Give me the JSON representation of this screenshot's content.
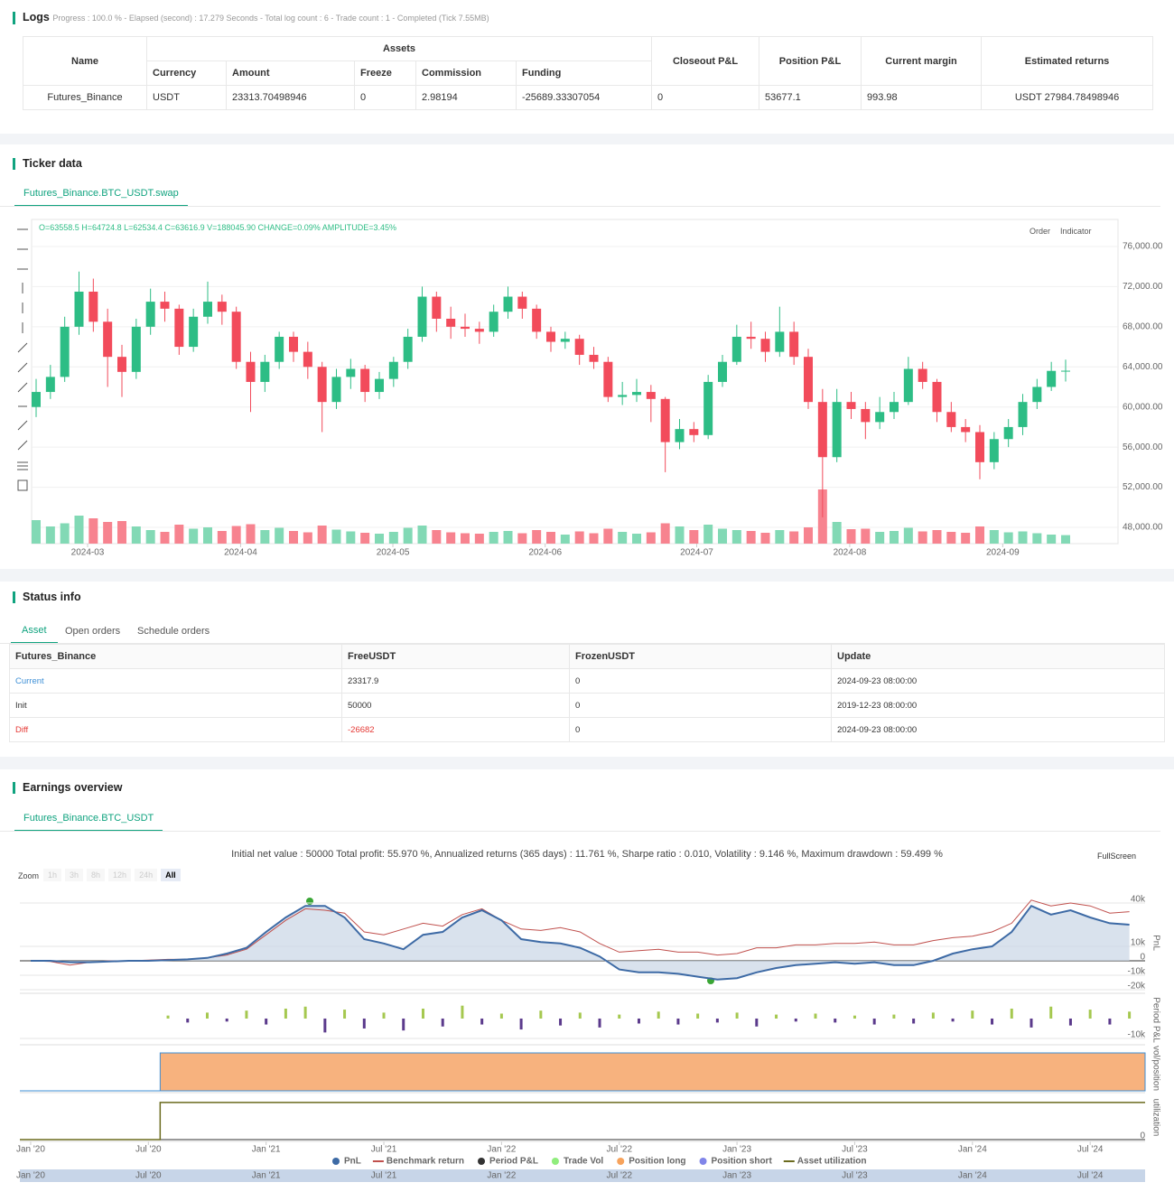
{
  "logs": {
    "title": "Logs",
    "progress": "Progress : 100.0 % - Elapsed (second) : 17.279  Seconds - Total log count : 6 - Trade count : 1 - Completed (Tick 7.55MB)",
    "table": {
      "group_header": "Assets",
      "headers": [
        "Name",
        "Currency",
        "Amount",
        "Freeze",
        "Commission",
        "Funding",
        "Closeout P&L",
        "Position P&L",
        "Current margin",
        "Estimated returns"
      ],
      "rows": [
        [
          "Futures_Binance",
          "USDT",
          "23313.70498946",
          "0",
          "2.98194",
          "-25689.33307054",
          "0",
          "53677.1",
          "993.98",
          "USDT 27984.78498946"
        ]
      ]
    }
  },
  "ticker": {
    "title": "Ticker data",
    "tab": "Futures_Binance.BTC_USDT.swap",
    "info": "O=63558.5 H=64724.8 L=62534.4 C=63616.9 V=188045.90 CHANGE=0.09% AMPLITUDE=3.45%",
    "buttons": [
      "Order",
      "Indicator"
    ]
  },
  "status": {
    "title": "Status info",
    "tabs": [
      "Asset",
      "Open orders",
      "Schedule orders"
    ],
    "table": {
      "headers": [
        "Futures_Binance",
        "FreeUSDT",
        "FrozenUSDT",
        "Update"
      ],
      "rows": [
        [
          "Current",
          "23317.9",
          "0",
          "2024-09-23 08:00:00"
        ],
        [
          "Init",
          "50000",
          "0",
          "2019-12-23 08:00:00"
        ],
        [
          "Diff",
          "-26682",
          "0",
          "2024-09-23 08:00:00"
        ]
      ]
    }
  },
  "earnings": {
    "title": "Earnings overview",
    "tab": "Futures_Binance.BTC_USDT",
    "summary": "Initial net value : 50000 Total profit: 55.970 %, Annualized returns (365 days) : 11.761 %, Sharpe ratio : 0.010, Volatility : 9.146 %, Maximum drawdown : 59.499 %",
    "fullscreen": "FullScreen",
    "zoom_label": "Zoom",
    "zoom_buttons": [
      "1h",
      "3h",
      "8h",
      "12h",
      "24h",
      "All"
    ],
    "legend": [
      {
        "name": "PnL",
        "color": "#3d6aa5",
        "marker": "circle"
      },
      {
        "name": "Benchmark return",
        "color": "#c0504d",
        "marker": "line"
      },
      {
        "name": "Period P&L",
        "color": "#333333",
        "marker": "circle"
      },
      {
        "name": "Trade Vol",
        "color": "#90ed7d",
        "marker": "circle"
      },
      {
        "name": "Position long",
        "color": "#f7a35c",
        "marker": "circle"
      },
      {
        "name": "Position short",
        "color": "#8085e9",
        "marker": "circle"
      },
      {
        "name": "Asset utilization",
        "color": "#6b6b1f",
        "marker": "line"
      }
    ]
  },
  "chart_data": [
    {
      "type": "candlestick",
      "up_color": "#2dbd85",
      "down_color": "#f24b5b",
      "up_volume_color": "#82d9b5",
      "down_volume_color": "#f7838f",
      "open": [
        60000,
        61500,
        63000,
        68000,
        71500,
        68500,
        65000,
        63500,
        68000,
        70500,
        69800,
        66000,
        69000,
        70500,
        69500,
        64500,
        62500,
        64500,
        67000,
        65500,
        64000,
        60500,
        63000,
        63800,
        61500,
        62800,
        64500,
        67000,
        71000,
        68800,
        68000,
        67800,
        67500,
        69500,
        71000,
        69800,
        67500,
        66500,
        66800,
        65200,
        64500,
        61000,
        61200,
        61500,
        60800,
        56500,
        57800,
        57200,
        62500,
        64500,
        67000,
        66800,
        65500,
        67500,
        65000,
        60500,
        55000,
        60500,
        59800,
        58500,
        59500,
        60500,
        63800,
        62500,
        59500,
        58000,
        57500,
        54500,
        56800,
        58000,
        60500,
        62000,
        63558.5
      ],
      "high": [
        62800,
        64200,
        69000,
        73500,
        72800,
        69800,
        66200,
        68800,
        71800,
        71500,
        70200,
        69800,
        72500,
        71200,
        70000,
        65500,
        65200,
        67500,
        67500,
        66500,
        64500,
        63800,
        64800,
        64200,
        63500,
        65000,
        67800,
        72000,
        71500,
        70000,
        69300,
        68500,
        70200,
        72000,
        71500,
        70200,
        68000,
        67500,
        67200,
        66000,
        65000,
        62500,
        62800,
        62200,
        61000,
        58800,
        58500,
        63200,
        65200,
        68200,
        68500,
        67500,
        70000,
        68500,
        65800,
        61800,
        61800,
        61500,
        60500,
        61000,
        61500,
        65000,
        64500,
        62800,
        60500,
        58800,
        58200,
        57500,
        58800,
        61300,
        62800,
        64500,
        64724.8
      ],
      "low": [
        59000,
        60800,
        62500,
        67200,
        67500,
        62000,
        61000,
        62800,
        67200,
        68500,
        65200,
        65500,
        68300,
        68200,
        63800,
        59500,
        61500,
        63800,
        64500,
        62800,
        57500,
        59800,
        61800,
        60500,
        60800,
        62000,
        63800,
        66500,
        67500,
        66800,
        67000,
        66300,
        67000,
        68800,
        68800,
        66800,
        65500,
        65800,
        64200,
        63800,
        60500,
        60200,
        60500,
        58500,
        53500,
        55800,
        56500,
        56800,
        62000,
        64200,
        65800,
        64500,
        65000,
        64200,
        59800,
        49000,
        54500,
        58800,
        56800,
        57800,
        58800,
        60200,
        61800,
        58500,
        57500,
        56500,
        52800,
        53800,
        56000,
        57200,
        59800,
        61600,
        62534.4
      ],
      "close": [
        61500,
        63000,
        68000,
        71500,
        68500,
        65000,
        63500,
        68000,
        70500,
        69800,
        66000,
        69000,
        70500,
        69500,
        64500,
        62500,
        64500,
        67000,
        65500,
        64000,
        60500,
        63000,
        63800,
        61500,
        62800,
        64500,
        67000,
        71000,
        68800,
        68000,
        67800,
        67500,
        69500,
        71000,
        69800,
        67500,
        66500,
        66800,
        65200,
        64500,
        61000,
        61200,
        61500,
        60800,
        56500,
        57800,
        57200,
        62500,
        64500,
        67000,
        66800,
        65500,
        67500,
        65000,
        60500,
        55000,
        60500,
        59800,
        58500,
        59500,
        60500,
        63800,
        62500,
        59500,
        58000,
        57500,
        54500,
        56800,
        58000,
        60500,
        62000,
        63600,
        63616.9
      ],
      "volume": [
        520000,
        380000,
        450000,
        620000,
        560000,
        480000,
        500000,
        380000,
        300000,
        260000,
        420000,
        330000,
        360000,
        280000,
        390000,
        430000,
        300000,
        350000,
        280000,
        250000,
        400000,
        310000,
        270000,
        240000,
        220000,
        260000,
        350000,
        400000,
        300000,
        250000,
        230000,
        220000,
        260000,
        280000,
        230000,
        300000,
        260000,
        200000,
        270000,
        230000,
        330000,
        260000,
        220000,
        250000,
        450000,
        380000,
        300000,
        420000,
        330000,
        300000,
        280000,
        240000,
        300000,
        270000,
        360000,
        1200000,
        480000,
        320000,
        330000,
        260000,
        280000,
        350000,
        270000,
        300000,
        260000,
        240000,
        380000,
        300000,
        250000,
        270000,
        230000,
        200000,
        188045.9
      ],
      "ylim": [
        46380,
        78700
      ],
      "yticks": [
        {
          "value": 48000,
          "label": "48,000.00"
        },
        {
          "value": 52000,
          "label": "52,000.00"
        },
        {
          "value": 56000,
          "label": "56,000.00"
        },
        {
          "value": 60000,
          "label": "60,000.00"
        },
        {
          "value": 64000,
          "label": "64,000.00"
        },
        {
          "value": 68000,
          "label": "68,000.00"
        },
        {
          "value": 72000,
          "label": "72,000.00"
        },
        {
          "value": 76000,
          "label": "76,000.00"
        }
      ],
      "xticks": [
        {
          "value": 3.6,
          "label": "2024-03"
        },
        {
          "value": 14.3,
          "label": "2024-04"
        },
        {
          "value": 24.95,
          "label": "2024-05"
        },
        {
          "value": 35.6,
          "label": "2024-06"
        },
        {
          "value": 46.2,
          "label": "2024-07"
        },
        {
          "value": 56.9,
          "label": "2024-08"
        },
        {
          "value": 67.6,
          "label": "2024-09"
        }
      ],
      "grid": true
    },
    {
      "type": "line",
      "ylabel": "PnL",
      "x": [
        0,
        1,
        2,
        3,
        4,
        5,
        6,
        7,
        8,
        9,
        10,
        11,
        12,
        13,
        14,
        15,
        16,
        17,
        18,
        19,
        20,
        21,
        22,
        23,
        24,
        25,
        26,
        27,
        28,
        29,
        30,
        31,
        32,
        33,
        34,
        35,
        36,
        37,
        38,
        39,
        40,
        41,
        42,
        43,
        44,
        45,
        46,
        47,
        48,
        49,
        50,
        51,
        52,
        53,
        54,
        55,
        56
      ],
      "series": [
        {
          "name": "PnL",
          "color": "#3d6aa5",
          "fill": "#c9d5e6",
          "values": [
            0,
            0,
            -1000,
            -1000,
            -500,
            0,
            0,
            500,
            1000,
            2000,
            5000,
            9000,
            20000,
            30000,
            38000,
            38000,
            30000,
            15000,
            12000,
            8000,
            18000,
            20000,
            30000,
            35000,
            28000,
            15000,
            13000,
            12000,
            9000,
            3000,
            -6000,
            -8000,
            -8000,
            -9000,
            -11000,
            -13000,
            -12000,
            -8000,
            -5000,
            -3000,
            -2000,
            -1000,
            -2000,
            -1000,
            -3000,
            -3000,
            0,
            5000,
            8000,
            10000,
            20000,
            38000,
            32000,
            35000,
            30000,
            26000,
            25000
          ]
        },
        {
          "name": "Benchmark return",
          "color": "#c0504d",
          "values": [
            0,
            -500,
            -3000,
            -1000,
            0,
            0,
            500,
            1000,
            1000,
            2000,
            4000,
            8000,
            18000,
            28000,
            36000,
            35000,
            33000,
            20000,
            18000,
            22000,
            26000,
            24000,
            32000,
            36000,
            28000,
            22000,
            21000,
            23000,
            20000,
            12000,
            6000,
            7000,
            8000,
            6000,
            6000,
            4000,
            5000,
            9000,
            9000,
            11000,
            11000,
            12000,
            12000,
            13000,
            11000,
            11000,
            14000,
            16000,
            17000,
            20000,
            26000,
            42000,
            38000,
            40000,
            38000,
            33000,
            34000
          ]
        }
      ],
      "xlim": [
        -0.55,
        56.8
      ],
      "ylim": [
        -21250,
        46250
      ],
      "yticks": [
        {
          "value": 40000,
          "label": "40k"
        },
        {
          "value": 10000,
          "label": "10k"
        },
        0,
        {
          "value": -10000,
          "label": "-10k"
        },
        {
          "value": -20000,
          "label": "-20k"
        }
      ],
      "xticks": [
        {
          "value": 0,
          "label": "Jan '20"
        },
        {
          "value": 6,
          "label": "Jul '20"
        },
        {
          "value": 12,
          "label": "Jan '21"
        },
        {
          "value": 18,
          "label": "Jul '21"
        },
        {
          "value": 24,
          "label": "Jan '22"
        },
        {
          "value": 30,
          "label": "Jul '22"
        },
        {
          "value": 36,
          "label": "Jan '23"
        },
        {
          "value": 42,
          "label": "Jul '23"
        },
        {
          "value": 48,
          "label": "Jan '24"
        },
        {
          "value": 54,
          "label": "Jul '24"
        }
      ],
      "grid": true
    },
    {
      "type": "bar",
      "ylabel": "Period P&L",
      "color": "#a5c84f",
      "negative_color": "#5b3a8c",
      "x": [
        7,
        8,
        9,
        10,
        11,
        12,
        13,
        14,
        15,
        16,
        17,
        18,
        19,
        20,
        21,
        22,
        23,
        24,
        25,
        26,
        27,
        28,
        29,
        30,
        31,
        32,
        33,
        34,
        35,
        36,
        37,
        38,
        39,
        40,
        41,
        42,
        43,
        44,
        45,
        46,
        47,
        48,
        49,
        50,
        51,
        52,
        53,
        54,
        55,
        56
      ],
      "values": [
        1500,
        -2000,
        3000,
        -1500,
        4000,
        -3000,
        5000,
        6000,
        -7000,
        4500,
        -5000,
        3000,
        -6000,
        5000,
        -4000,
        6500,
        -3000,
        2500,
        -5500,
        4000,
        -3500,
        3000,
        -4500,
        2000,
        -2500,
        3500,
        -3000,
        2500,
        -2000,
        3000,
        -4000,
        2000,
        -1500,
        2500,
        -2000,
        1500,
        -3000,
        2000,
        -2500,
        3000,
        -1500,
        4000,
        -3000,
        5000,
        -4500,
        6000,
        -3500,
        4500,
        -3000,
        3500
      ],
      "xlim": [
        -0.55,
        56.8
      ],
      "ylim": [
        -12300,
        10900
      ],
      "yticks": [
        {
          "value": -10000,
          "label": "-10k"
        }
      ]
    },
    {
      "type": "area",
      "ylabel": "vol/position",
      "color": "#f7b27e",
      "x": [
        -0.55,
        6.6,
        6.6,
        56.8
      ],
      "values": [
        0,
        0,
        1,
        1
      ],
      "xlim": [
        -0.55,
        56.8
      ],
      "ylim": [
        0,
        1.19
      ],
      "yticks": [
        0
      ]
    },
    {
      "type": "line",
      "ylabel": "utilization",
      "color": "#6b6b1f",
      "x": [
        -0.55,
        6.6,
        6.6,
        56.8
      ],
      "values": [
        0,
        0,
        1,
        1
      ],
      "xlim": [
        -0.55,
        56.8
      ],
      "ylim": [
        0,
        1.19
      ],
      "yticks": [
        0
      ]
    }
  ]
}
